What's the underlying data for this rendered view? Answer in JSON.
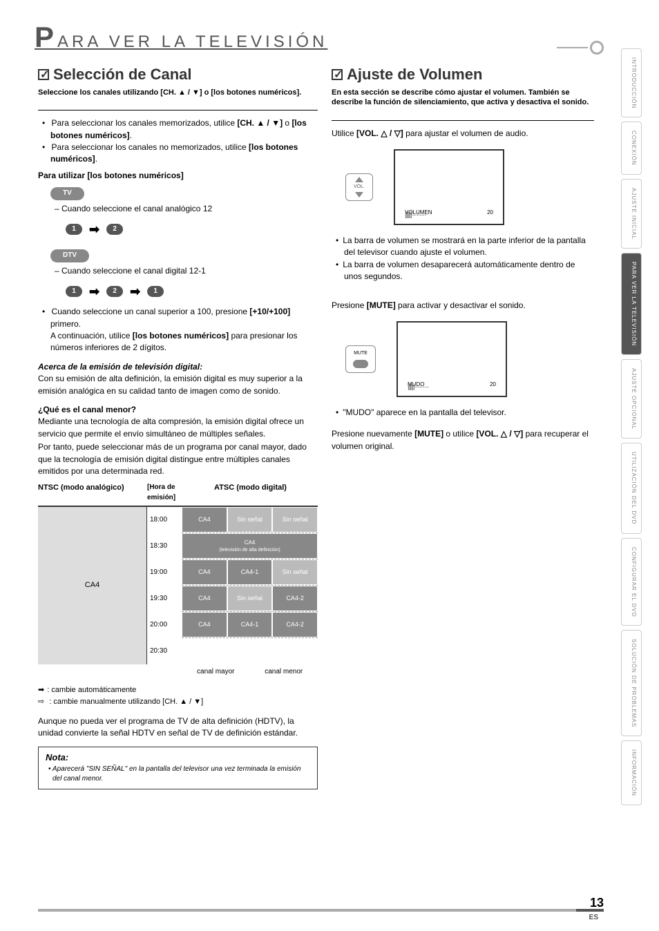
{
  "page_title_letter": "P",
  "page_title_rest": "ARA VER LA TELEVISIÓN",
  "side_tabs": [
    {
      "label": "INTRODUCCIÓN",
      "active": false
    },
    {
      "label": "CONEXIÓN",
      "active": false
    },
    {
      "label": "AJUSTE INICIAL",
      "active": false
    },
    {
      "label": "PARA VER LA TELEVISIÓN",
      "active": true
    },
    {
      "label": "AJUSTE OPCIONAL",
      "active": false
    },
    {
      "label": "UTILIZACIÓN DEL DVD",
      "active": false
    },
    {
      "label": "CONFIGURAR EL DVD",
      "active": false
    },
    {
      "label": "SOLUCIÓN DE PROBLEMAS",
      "active": false
    },
    {
      "label": "INFORMACIÓN",
      "active": false
    }
  ],
  "left": {
    "title": "Selección de Canal",
    "subtitle": "Seleccione los canales utilizando [CH. ▲ / ▼] o [los botones numéricos].",
    "bullet1a": "Para seleccionar los canales memorizados, utilice ",
    "bullet1b": "[CH. ▲ / ▼]",
    "bullet1c": " o ",
    "bullet1d": "[los botones numéricos]",
    "bullet2a": "Para seleccionar los canales no memorizados, utilice ",
    "bullet2b": "[los botones numéricos]",
    "howto": "Para utilizar [los botones numéricos]",
    "pill_tv": "TV",
    "analog_line": "– Cuando seleccione el canal analógico 12",
    "seq_analog": [
      "1",
      "2"
    ],
    "pill_dtv": "DTV",
    "digital_line": "– Cuando seleccione el canal digital 12-1",
    "seq_digital": [
      "1",
      "2",
      "1"
    ],
    "over100a": "Cuando seleccione un canal superior a 100, presione ",
    "over100b": "[+10/+100]",
    "over100c": " primero.",
    "over100d": "A continuación, utilice ",
    "over100e": "[los botones numéricos]",
    "over100f": " para presionar los números inferiores de 2 dígitos.",
    "about_title": "Acerca de la emisión de televisión digital:",
    "about_body": "Con su emisión de alta definición, la emisión digital es muy superior a la emisión analógica en su calidad tanto de imagen como de sonido.",
    "minor_title": "¿Qué es el canal menor?",
    "minor_body1": "Mediante una tecnología de alta compresión, la emisión digital ofrece un servicio que permite el envío simultáneo de múltiples señales.",
    "minor_body2": "Por tanto, puede seleccionar más de un programa por canal mayor, dado que la tecnología de emisión digital distingue entre múltiples canales emitidos por una determinada red.",
    "chart": {
      "header_ntsc": "NTSC (modo analógico)",
      "header_hora": "[Hora de emisión]",
      "header_atsc": "ATSC (modo digital)",
      "times": [
        "18:00",
        "18:30",
        "19:00",
        "19:30",
        "20:00",
        "20:30"
      ],
      "ca4": "CA4",
      "sin": "Sin señal",
      "hd": "(televisión de alta definición)",
      "ca41": "CA4-1",
      "ca42": "CA4-2",
      "label_mayor": "canal mayor",
      "label_menor": "canal menor"
    },
    "legend_auto": ": cambie automáticamente",
    "legend_manual": ": cambie manualmente utilizando [CH. ▲ / ▼]",
    "hdtv_note": "Aunque no pueda ver el programa de TV de alta definición (HDTV), la unidad convierte la señal HDTV en señal de TV de definición estándar.",
    "nota_title": "Nota:",
    "nota_body": "• Aparecerá \"SIN SEÑAL\" en la pantalla del televisor una vez terminada la emisión del canal menor."
  },
  "right": {
    "title": "Ajuste de Volumen",
    "subtitle": "En esta sección se describe cómo ajustar el volumen. También se describe la función de silenciamiento, que activa y desactiva el sonido.",
    "use_vol_a": "Utilice ",
    "use_vol_b": "[VOL. △ / ▽]",
    "use_vol_c": " para ajustar el volumen de audio.",
    "vol_label": "VOL.",
    "osd_volumen": "VOLUMEN",
    "osd_20": "20",
    "osd_bar": "||||||·········",
    "bullet_vol1": "La barra de volumen se mostrará en la parte inferior de la pantalla del televisor cuando ajuste el volumen.",
    "bullet_vol2": "La barra de volumen desaparecerá automáticamente dentro de unos segundos.",
    "mute_a": "Presione ",
    "mute_b": "[MUTE]",
    "mute_c": " para activar y desactivar el sonido.",
    "mute_label": "MUTE",
    "osd_mudo": "MUDO",
    "bullet_mudo": "\"MUDO\" aparece en la pantalla del televisor.",
    "recover_a": "Presione nuevamente ",
    "recover_b": "[MUTE]",
    "recover_c": " o utilice ",
    "recover_d": "[VOL. △ / ▽]",
    "recover_e": " para recuperar el volumen original."
  },
  "page_number": "13",
  "page_lang": "ES"
}
